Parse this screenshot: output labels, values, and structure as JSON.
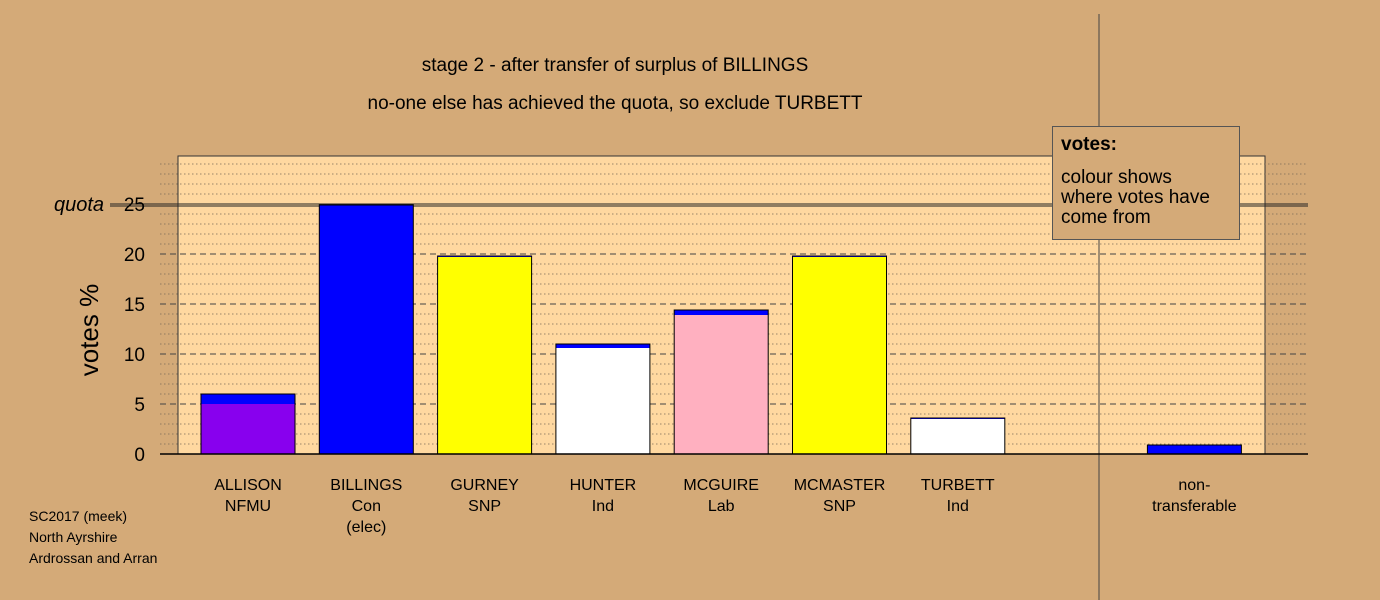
{
  "chart_data": {
    "type": "bar",
    "title": "stage 2 - after transfer of surplus of BILLINGS",
    "subtitle": "no-one else has achieved the quota, so exclude TURBETT",
    "ylabel": "votes %",
    "ylim": [
      0,
      30
    ],
    "yticks": [
      0,
      5,
      10,
      15,
      20,
      25
    ],
    "quota": 25,
    "quota_label": "quota",
    "categories": [
      {
        "name": "ALLISON",
        "party": "NFMU",
        "note": ""
      },
      {
        "name": "BILLINGS",
        "party": "Con",
        "note": "(elec)"
      },
      {
        "name": "GURNEY",
        "party": "SNP",
        "note": ""
      },
      {
        "name": "HUNTER",
        "party": "Ind",
        "note": ""
      },
      {
        "name": "MCGUIRE",
        "party": "Lab",
        "note": ""
      },
      {
        "name": "MCMASTER",
        "party": "SNP",
        "note": ""
      },
      {
        "name": "TURBETT",
        "party": "Ind",
        "note": ""
      },
      {
        "name": "",
        "party": "",
        "note": ""
      },
      {
        "name": "non-",
        "party": "transferable",
        "note": ""
      }
    ],
    "bars": [
      {
        "segments": [
          {
            "value": 5.0,
            "color": "#8800ee"
          },
          {
            "value": 1.0,
            "color": "#0000ff"
          }
        ]
      },
      {
        "segments": [
          {
            "value": 24.9,
            "color": "#0000ff"
          }
        ]
      },
      {
        "segments": [
          {
            "value": 19.7,
            "color": "#ffff00"
          },
          {
            "value": 0.1,
            "color": "#0000ff"
          }
        ]
      },
      {
        "segments": [
          {
            "value": 10.6,
            "color": "#ffffff"
          },
          {
            "value": 0.4,
            "color": "#0000ff"
          }
        ]
      },
      {
        "segments": [
          {
            "value": 13.9,
            "color": "#ffb0c0"
          },
          {
            "value": 0.5,
            "color": "#0000ff"
          }
        ]
      },
      {
        "segments": [
          {
            "value": 19.7,
            "color": "#ffff00"
          },
          {
            "value": 0.1,
            "color": "#0000ff"
          }
        ]
      },
      {
        "segments": [
          {
            "value": 3.5,
            "color": "#ffffff"
          },
          {
            "value": 0.1,
            "color": "#0000ff"
          }
        ]
      },
      {
        "segments": []
      },
      {
        "segments": [
          {
            "value": 0.9,
            "color": "#0000ff"
          }
        ]
      }
    ],
    "plot_background": "#ffd8a0",
    "page_background": "#d4aa78",
    "legend": {
      "heading": "votes:",
      "text": "colour shows where votes have come from"
    },
    "caption": [
      "SC2017 (meek)",
      "North Ayrshire",
      "Ardrossan and Arran"
    ]
  }
}
